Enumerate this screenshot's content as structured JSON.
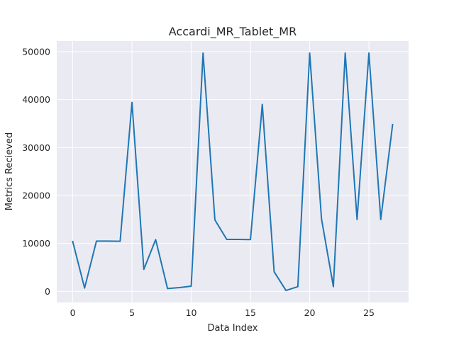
{
  "chart_data": {
    "type": "line",
    "title": "Accardi_MR_Tablet_MR",
    "xlabel": "Data Index",
    "ylabel": "Metrics Recieved",
    "xlim": [
      -1.35,
      28.35
    ],
    "ylim": [
      -2300,
      52200
    ],
    "xticks": [
      0,
      5,
      10,
      15,
      20,
      25
    ],
    "yticks": [
      0,
      10000,
      20000,
      30000,
      40000,
      50000
    ],
    "grid": true,
    "legend": "none",
    "colors": {
      "line": "#1f77b4",
      "plot_bg": "#eaeaf2",
      "grid": "#ffffff"
    },
    "series": [
      {
        "x": [
          0,
          1,
          2,
          3,
          4,
          5,
          6,
          7,
          8,
          9,
          10,
          11,
          12,
          13,
          14,
          15,
          16,
          17,
          18,
          19,
          20,
          21,
          22,
          23,
          24,
          25,
          26,
          27
        ],
        "values": [
          10400,
          700,
          10500,
          10500,
          10450,
          39400,
          4600,
          10800,
          600,
          800,
          1100,
          49700,
          14900,
          10850,
          10850,
          10800,
          39000,
          4100,
          200,
          1000,
          49700,
          15100,
          1000,
          49700,
          15000,
          49700,
          15000,
          34800
        ]
      }
    ]
  }
}
